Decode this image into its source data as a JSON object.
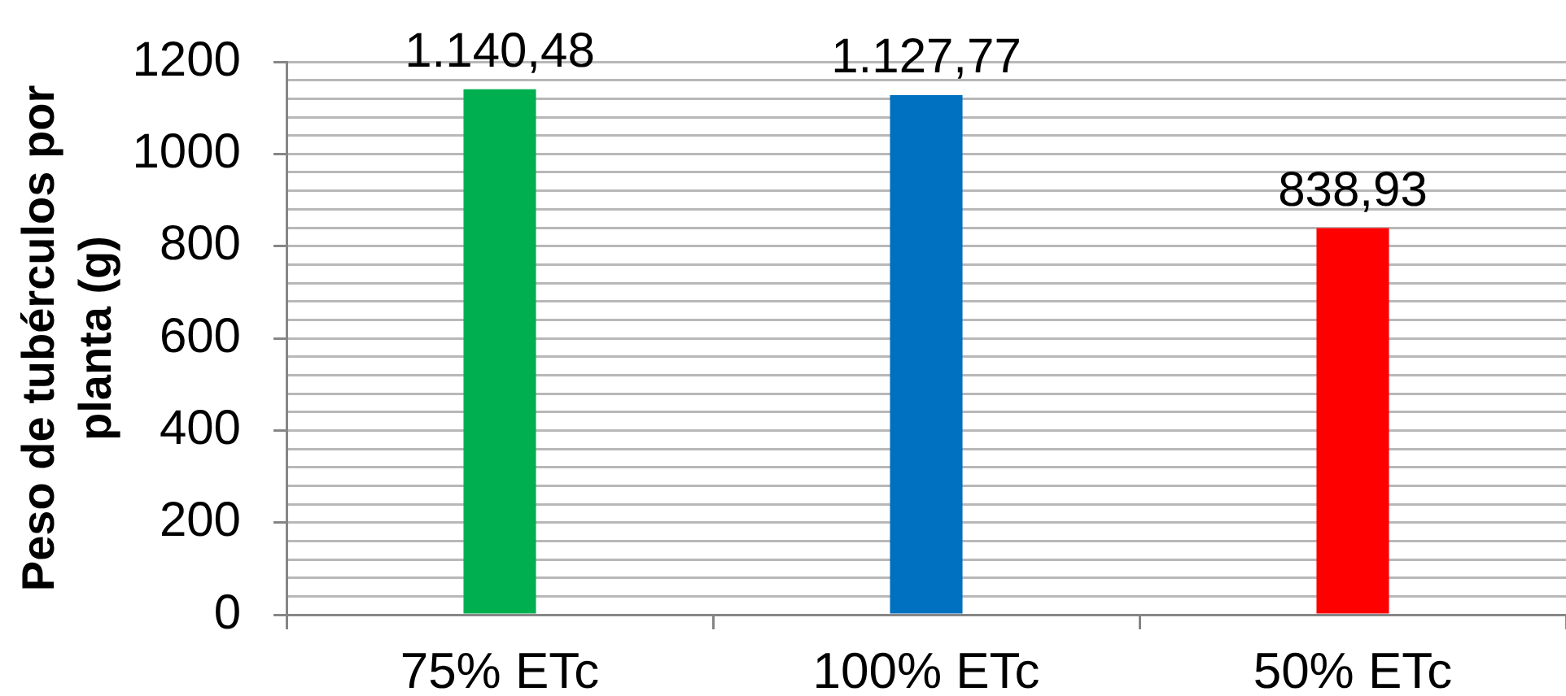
{
  "chart_data": {
    "type": "bar",
    "ylabel": "Peso de tubérculos por planta (g)",
    "categories": [
      "75% ETc",
      "100% ETc",
      "50% ETc"
    ],
    "values": [
      1140.48,
      1127.77,
      838.93
    ],
    "colors": [
      "#00b050",
      "#0070c0",
      "#ff0000"
    ],
    "value_labels": [
      "1.140,48",
      "1.127,77",
      "838,93"
    ],
    "ylim": [
      0,
      1200
    ],
    "yticks": [
      0,
      {
        "value": 40,
        "label": null
      },
      {
        "value": 80,
        "label": null
      },
      {
        "value": 120,
        "label": null
      },
      {
        "value": 160,
        "label": null
      },
      200,
      {
        "value": 240,
        "label": null
      },
      {
        "value": 280,
        "label": null
      },
      {
        "value": 320,
        "label": null
      },
      {
        "value": 360,
        "label": null
      },
      400,
      {
        "value": 440,
        "label": null
      },
      {
        "value": 480,
        "label": null
      },
      {
        "value": 520,
        "label": null
      },
      {
        "value": 560,
        "label": null
      },
      600,
      {
        "value": 640,
        "label": null
      },
      {
        "value": 680,
        "label": null
      },
      {
        "value": 720,
        "label": null
      },
      {
        "value": 760,
        "label": null
      },
      800,
      {
        "value": 840,
        "label": null
      },
      {
        "value": 880,
        "label": null
      },
      {
        "value": 920,
        "label": null
      },
      {
        "value": 960,
        "label": null
      },
      1000,
      {
        "value": 1040,
        "label": null
      },
      {
        "value": 1080,
        "label": null
      },
      {
        "value": 1120,
        "label": null
      },
      {
        "value": 1160,
        "label": null
      },
      1200
    ],
    "grid": "y"
  }
}
